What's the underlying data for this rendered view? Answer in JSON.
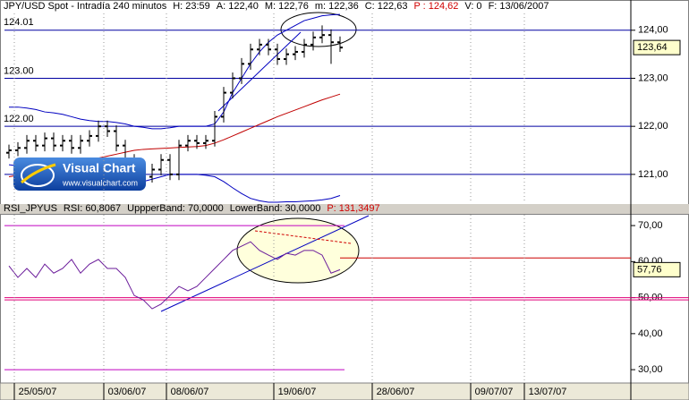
{
  "chart_data": [
    {
      "type": "candlestick",
      "header": [
        {
          "text": "JPY/USD Spot - Intradía 240 minutos",
          "color": "#000000"
        },
        {
          "text": "H: 23:59",
          "color": "#000000"
        },
        {
          "text": "A: 122,40",
          "color": "#000000"
        },
        {
          "text": "M: 122,76",
          "color": "#000000"
        },
        {
          "text": "m: 122,36",
          "color": "#000000"
        },
        {
          "text": "C: 122,63",
          "color": "#000000"
        },
        {
          "text": "P : 124,62",
          "color": "#d00000"
        },
        {
          "text": "V: 0",
          "color": "#000000"
        },
        {
          "text": "F: 13/06/2007",
          "color": "#000000"
        }
      ],
      "color": "#000000",
      "open": [
        121.45,
        121.5,
        121.55,
        121.7,
        121.6,
        121.75,
        121.6,
        121.7,
        121.55,
        121.7,
        121.8,
        122.0,
        121.9,
        121.6,
        121.3,
        121.1,
        120.95,
        121.1,
        121.3,
        121.0,
        121.6,
        121.7,
        121.65,
        121.7,
        122.2,
        122.7,
        123.0,
        123.3,
        123.6,
        123.7,
        123.6,
        123.4,
        123.5,
        123.55,
        123.7,
        123.85,
        123.9,
        123.75,
        null,
        null,
        null,
        null,
        null,
        null,
        null,
        null,
        null,
        null,
        null,
        null,
        null,
        null,
        null,
        null,
        null,
        null,
        null,
        null,
        null,
        null,
        null,
        null,
        null,
        null,
        null,
        null,
        null,
        null,
        null,
        null
      ],
      "high": [
        121.62,
        121.67,
        121.82,
        121.82,
        121.87,
        121.87,
        121.82,
        121.82,
        121.82,
        121.92,
        122.12,
        122.12,
        122.02,
        121.72,
        121.42,
        121.22,
        121.22,
        121.42,
        121.42,
        121.72,
        121.82,
        121.82,
        121.82,
        122.32,
        122.82,
        123.12,
        123.42,
        123.72,
        123.82,
        123.82,
        123.72,
        123.62,
        123.67,
        123.82,
        123.97,
        124.1,
        124.02,
        123.87,
        null,
        null,
        null,
        null,
        null,
        null,
        null,
        null,
        null,
        null,
        null,
        null,
        null,
        null,
        null,
        null,
        null,
        null,
        null,
        null,
        null,
        null,
        null,
        null,
        null,
        null,
        null,
        null,
        null,
        null,
        null,
        null
      ],
      "low": [
        121.33,
        121.38,
        121.43,
        121.48,
        121.48,
        121.48,
        121.48,
        121.43,
        121.43,
        121.58,
        121.68,
        121.78,
        121.48,
        121.18,
        120.98,
        120.83,
        120.83,
        120.98,
        120.88,
        120.88,
        121.48,
        121.53,
        121.53,
        121.58,
        122.08,
        122.58,
        122.88,
        123.18,
        123.48,
        123.48,
        123.28,
        123.28,
        123.38,
        123.43,
        123.58,
        123.73,
        123.3,
        123.55,
        null,
        null,
        null,
        null,
        null,
        null,
        null,
        null,
        null,
        null,
        null,
        null,
        null,
        null,
        null,
        null,
        null,
        null,
        null,
        null,
        null,
        null,
        null,
        null,
        null,
        null,
        null,
        null,
        null,
        null,
        null,
        null
      ],
      "close": [
        121.5,
        121.55,
        121.7,
        121.6,
        121.75,
        121.6,
        121.7,
        121.55,
        121.7,
        121.8,
        122.0,
        121.9,
        121.6,
        121.3,
        121.1,
        120.95,
        121.1,
        121.3,
        121.0,
        121.6,
        121.7,
        121.65,
        121.7,
        122.2,
        122.7,
        123.0,
        123.3,
        123.6,
        123.7,
        123.6,
        123.4,
        123.5,
        123.55,
        123.7,
        123.85,
        123.9,
        123.75,
        123.64,
        null,
        null,
        null,
        null,
        null,
        null,
        null,
        null,
        null,
        null,
        null,
        null,
        null,
        null,
        null,
        null,
        null,
        null,
        null,
        null,
        null,
        null,
        null,
        null,
        null,
        null,
        null,
        null,
        null,
        null,
        null,
        null
      ],
      "lines": [
        {
          "color": "#0000c0",
          "values": [
            122.4,
            122.4,
            122.38,
            122.35,
            122.3,
            122.28,
            122.25,
            122.2,
            122.15,
            122.12,
            122.1,
            122.1,
            122.08,
            122.05,
            122.0,
            121.98,
            121.95,
            121.95,
            121.97,
            122.0,
            122.0,
            122.0,
            122.0,
            122.05,
            122.3,
            122.7,
            123.0,
            123.3,
            123.55,
            123.75,
            123.9,
            124.0,
            124.1,
            124.2,
            124.25,
            124.3,
            124.32,
            124.33,
            null,
            null,
            null,
            null,
            null,
            null,
            null,
            null,
            null,
            null,
            null,
            null,
            null,
            null,
            null,
            null,
            null,
            null,
            null,
            null,
            null,
            null,
            null,
            null,
            null,
            null,
            null,
            null,
            null,
            null,
            null,
            null
          ]
        },
        {
          "color": "#c00000",
          "values": [
            120.95,
            120.98,
            121.02,
            121.06,
            121.1,
            121.14,
            121.18,
            121.22,
            121.26,
            121.3,
            121.34,
            121.38,
            121.42,
            121.46,
            121.5,
            121.52,
            121.53,
            121.54,
            121.55,
            121.56,
            121.57,
            121.58,
            121.6,
            121.65,
            121.72,
            121.8,
            121.88,
            121.96,
            122.04,
            122.12,
            122.2,
            122.27,
            122.34,
            122.41,
            122.48,
            122.55,
            122.61,
            122.67,
            null,
            null,
            null,
            null,
            null,
            null,
            null,
            null,
            null,
            null,
            null,
            null,
            null,
            null,
            null,
            null,
            null,
            null,
            null,
            null,
            null,
            null,
            null,
            null,
            null,
            null,
            null,
            null,
            null,
            null,
            null,
            null
          ]
        },
        {
          "color": "#0000c0",
          "values": [
            121.2,
            121.18,
            121.15,
            121.12,
            121.08,
            121.04,
            121.0,
            120.95,
            120.9,
            120.88,
            120.85,
            120.82,
            120.8,
            120.8,
            120.82,
            120.85,
            120.9,
            120.95,
            121.0,
            121.0,
            121.0,
            121.0,
            120.98,
            120.95,
            120.85,
            120.72,
            120.6,
            120.5,
            120.45,
            120.42,
            120.42,
            120.43,
            120.43,
            120.44,
            120.45,
            120.47,
            120.5,
            120.56,
            null,
            null,
            null,
            null,
            null,
            null,
            null,
            null,
            null,
            null,
            null,
            null,
            null,
            null,
            null,
            null,
            null,
            null,
            null,
            null,
            null,
            null,
            null,
            null,
            null,
            null,
            null,
            null,
            null,
            null,
            null,
            null
          ]
        }
      ],
      "ylim": [
        120.42,
        124.35
      ],
      "yticks": [
        {
          "value": 121,
          "label": "121,00"
        },
        {
          "value": 122,
          "label": "122,00"
        },
        {
          "value": 123,
          "label": "123,00"
        },
        {
          "value": 124,
          "label": "124,00"
        }
      ],
      "grid": true,
      "grid_color": "#0000a0",
      "level_labels": [
        {
          "value": 124.01,
          "label": "124.01"
        },
        {
          "value": 123,
          "label": "123.00"
        },
        {
          "value": 122,
          "label": "122.00"
        }
      ],
      "last_value_label": "123,64",
      "logo": {
        "title": "Visual Chart",
        "url": "www.visualchart.com"
      }
    },
    {
      "type": "line",
      "header": [
        {
          "text": "RSI_JPYUS",
          "color": "#000000"
        },
        {
          "text": "RSI: 60,8067",
          "color": "#000000"
        },
        {
          "text": "UppperBand: 70,0000",
          "color": "#000000"
        },
        {
          "text": "LowerBand: 30,0000",
          "color": "#000000"
        },
        {
          "text": "P: 131,3497",
          "color": "#d00000"
        }
      ],
      "categories": [
        null,
        null,
        null,
        "25/05/07",
        null,
        null,
        null,
        null,
        null,
        null,
        null,
        null,
        null,
        "03/06/07",
        null,
        null,
        null,
        null,
        null,
        null,
        "08/06/07",
        null,
        null,
        null,
        null,
        null,
        null,
        null,
        null,
        null,
        null,
        null,
        "19/06/07",
        null,
        null,
        null,
        null,
        null,
        null,
        null,
        null,
        null,
        null,
        "28/06/07",
        null,
        null,
        null,
        null,
        null,
        null,
        null,
        null,
        null,
        null,
        "09/07/07",
        null,
        null,
        null,
        null,
        null,
        "13/07/07",
        null,
        null,
        null,
        null,
        null,
        null,
        null,
        null,
        null
      ],
      "values": [
        58.8,
        55.6,
        58.1,
        55.6,
        59.3,
        56.8,
        58.1,
        60.6,
        56.8,
        59.3,
        60.6,
        58.1,
        58.1,
        55.6,
        50.6,
        49.4,
        46.9,
        48.2,
        50.6,
        53.1,
        51.9,
        53.1,
        55.6,
        58.1,
        60.6,
        63.1,
        64.3,
        65.5,
        63.1,
        61.8,
        60.6,
        62.3,
        61.8,
        63.1,
        63.1,
        61.8,
        56.8,
        57.76,
        null,
        null,
        null,
        null,
        null,
        null,
        null,
        null,
        null,
        null,
        null,
        null,
        null,
        null,
        null,
        null,
        null,
        null,
        null,
        null,
        null,
        null,
        null,
        null,
        null,
        null,
        null,
        null,
        null,
        null,
        null,
        null
      ],
      "color": "#6a1b9a",
      "ylim": [
        26.3,
        73.0
      ],
      "yticks": [
        {
          "value": 30,
          "label": "30,00"
        },
        {
          "value": 40,
          "label": "40,00"
        },
        {
          "value": 50,
          "label": "50,00"
        },
        {
          "value": 60,
          "label": "60,00"
        },
        {
          "value": 70,
          "label": "70,00"
        }
      ],
      "hlines": [
        {
          "value": 70,
          "color": "#c000c0"
        },
        {
          "value": 30,
          "color": "#c000c0"
        },
        {
          "value": 50,
          "color": "#e0007a"
        },
        {
          "value": 61,
          "color": "#cc0000"
        }
      ],
      "last_value_label": "57,76"
    }
  ]
}
